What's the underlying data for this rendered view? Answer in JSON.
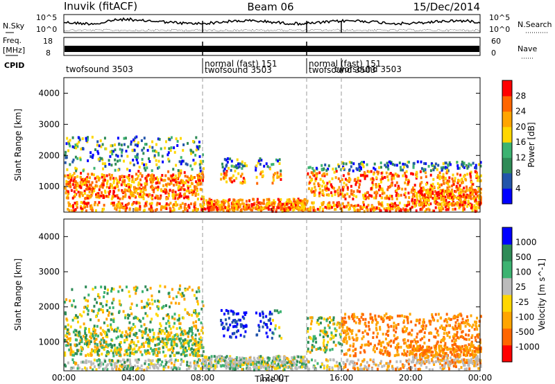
{
  "header": {
    "station": "Inuvik (fitACF)",
    "beam": "Beam 06",
    "date": "15/Dec/2014"
  },
  "strip_labels": {
    "nsky": "N.Sky",
    "nsky_scale_left": [
      "10^5",
      "10^0"
    ],
    "nsearch": "N.Search",
    "nsearch_scale_right": [
      "10^5",
      "10^0"
    ],
    "freq": "Freq.",
    "freq_unit": "[MHz]",
    "freq_scale_left": [
      "18",
      "8"
    ],
    "nave": "Nave",
    "nave_scale_right": [
      "60",
      "0"
    ],
    "cpid": "CPID"
  },
  "cpid_segments": [
    {
      "label": "twofsound 3503",
      "start": "00:00",
      "end": "08:00"
    },
    {
      "label": "normal (fast) 151",
      "start": "08:00",
      "end": "14:00"
    },
    {
      "label": "twofsound 3503",
      "start": "08:00",
      "end": "14:00"
    },
    {
      "label": "normal (fast) 151",
      "start": "14:00",
      "end": "16:00"
    },
    {
      "label": "twofsound 3503",
      "start": "14:00",
      "end": "16:00"
    },
    {
      "label": "twofsound 3503",
      "start": "16:00",
      "end": "24:00"
    }
  ],
  "colors": {
    "scale": [
      "#0000ff",
      "#2255aa",
      "#2e8b57",
      "#3cb371",
      "#ffd700",
      "#ffa500",
      "#ff6600",
      "#ff0000"
    ],
    "velocity_ground": "#bbbbbb"
  },
  "chart_data": [
    {
      "type": "heatmap",
      "title": "",
      "ylabel": "Slant Range [km]",
      "xlabel": "",
      "x_ticks": [
        "00:00",
        "04:00",
        "08:00",
        "12:00",
        "16:00",
        "20:00",
        "00:00"
      ],
      "y_ticks": [
        "1000",
        "2000",
        "3000",
        "4000"
      ],
      "ylim": [
        180,
        4500
      ],
      "colorbar_label": "Power [dB]",
      "colorbar_ticks": [
        "4",
        "8",
        "12",
        "16",
        "20",
        "24",
        "28"
      ],
      "colorbar_range": [
        0,
        32
      ]
    },
    {
      "type": "heatmap",
      "title": "",
      "ylabel": "Slant Range [km]",
      "xlabel": "Time UT",
      "x_ticks": [
        "00:00",
        "04:00",
        "08:00",
        "12:00",
        "16:00",
        "20:00",
        "00:00"
      ],
      "y_ticks": [
        "1000",
        "2000",
        "3000",
        "4000"
      ],
      "ylim": [
        180,
        4500
      ],
      "colorbar_label": "Velocity [m s^-1]",
      "colorbar_ticks": [
        "1000",
        "500",
        "100",
        "25",
        "-25",
        "-100",
        "-500",
        "-1000"
      ]
    }
  ]
}
